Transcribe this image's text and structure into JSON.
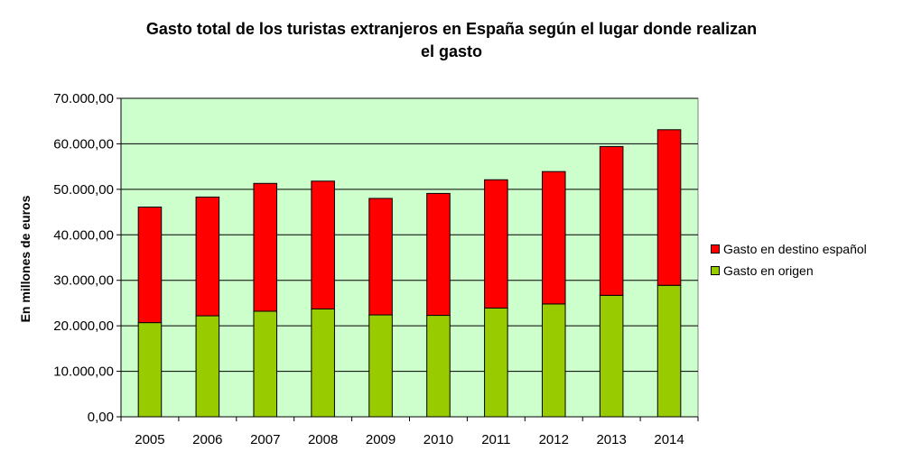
{
  "chart_data": {
    "type": "bar",
    "stacked": true,
    "title": "Gasto total de los turistas extranjeros en España según el lugar donde realizan el gasto",
    "title_lines": [
      "Gasto total de los turistas extranjeros en España según el lugar donde realizan",
      "el gasto"
    ],
    "xlabel": "",
    "ylabel": "En millones de euros",
    "ylim": [
      0,
      70000
    ],
    "yticks": [
      0,
      10000,
      20000,
      30000,
      40000,
      50000,
      60000,
      70000
    ],
    "ytick_labels": [
      "0,00",
      "10.000,00",
      "20.000,00",
      "30.000,00",
      "40.000,00",
      "50.000,00",
      "60.000,00",
      "70.000,00"
    ],
    "grid": true,
    "legend_position": "right",
    "background_color": "#ccffcc",
    "categories": [
      "2005",
      "2006",
      "2007",
      "2008",
      "2009",
      "2010",
      "2011",
      "2012",
      "2013",
      "2014"
    ],
    "series": [
      {
        "name": "Gasto en origen",
        "color": "#99cc00",
        "values": [
          20700,
          22200,
          23200,
          23700,
          22400,
          22300,
          23900,
          24800,
          26700,
          28900
        ]
      },
      {
        "name": "Gasto en destino español",
        "color": "#ff0000",
        "values": [
          25400,
          26100,
          28100,
          28100,
          25600,
          26800,
          28200,
          29100,
          32700,
          34200
        ]
      }
    ]
  }
}
